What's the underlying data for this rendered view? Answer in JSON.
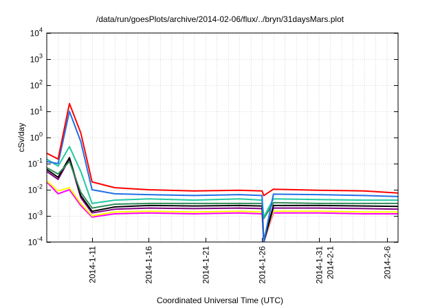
{
  "chart_data": {
    "type": "line",
    "title": "/data/run/goesPlots/archive/2014-02-06/flux/../bryn/31daysMars.plot",
    "xlabel": "Coordinated Universal Time (UTC)",
    "ylabel": "cSv/day",
    "yscale": "log",
    "ylim": [
      0.0001,
      10000
    ],
    "xlim": [
      "2014-01-07",
      "2014-02-07"
    ],
    "grid": true,
    "x_ticks": [
      "2014-1-11",
      "2014-1-16",
      "2014-1-21",
      "2014-1-26",
      "2014-1-31",
      "2014-2-1",
      "2014-2-6"
    ],
    "y_ticks": [
      {
        "value": 0.0001,
        "base": "10",
        "exp": "-4"
      },
      {
        "value": 0.001,
        "base": "10",
        "exp": "-3"
      },
      {
        "value": 0.01,
        "base": "10",
        "exp": "-2"
      },
      {
        "value": 0.1,
        "base": "10",
        "exp": "-1"
      },
      {
        "value": 1,
        "base": "10",
        "exp": "0"
      },
      {
        "value": 10,
        "base": "10",
        "exp": "1"
      },
      {
        "value": 100,
        "base": "10",
        "exp": "2"
      },
      {
        "value": 1000,
        "base": "10",
        "exp": "3"
      },
      {
        "value": 10000,
        "base": "10",
        "exp": "4"
      }
    ],
    "series": [
      {
        "color": "#ff00ff",
        "x": [
          "2014-01-07",
          "2014-01-08",
          "2014-01-09",
          "2014-01-10",
          "2014-01-11",
          "2014-01-13",
          "2014-01-16",
          "2014-01-20",
          "2014-01-24",
          "2014-01-26",
          "2014-01-26",
          "2014-01-27",
          "2014-01-31",
          "2014-02-04",
          "2014-02-07"
        ],
        "y": [
          0.02,
          0.007,
          0.01,
          0.0025,
          0.0009,
          0.0012,
          0.0013,
          0.0012,
          0.0013,
          0.0012,
          0.0001,
          0.0013,
          0.0013,
          0.0012,
          0.0012
        ]
      },
      {
        "color": "#ffff00",
        "x": [
          "2014-01-07",
          "2014-01-08",
          "2014-01-09",
          "2014-01-10",
          "2014-01-11",
          "2014-01-13",
          "2014-01-16",
          "2014-01-20",
          "2014-01-24",
          "2014-01-26",
          "2014-01-26",
          "2014-01-27",
          "2014-01-31",
          "2014-02-04",
          "2014-02-07"
        ],
        "y": [
          0.022,
          0.009,
          0.012,
          0.003,
          0.001,
          0.0014,
          0.0015,
          0.0014,
          0.0015,
          0.0014,
          0.0001,
          0.0015,
          0.0015,
          0.0014,
          0.0014
        ]
      },
      {
        "color": "#800080",
        "x": [
          "2014-01-07",
          "2014-01-08",
          "2014-01-09",
          "2014-01-10",
          "2014-01-11",
          "2014-01-13",
          "2014-01-16",
          "2014-01-20",
          "2014-01-24",
          "2014-01-26",
          "2014-01-26",
          "2014-01-27",
          "2014-01-31",
          "2014-02-04",
          "2014-02-07"
        ],
        "y": [
          0.05,
          0.025,
          0.15,
          0.005,
          0.0013,
          0.0018,
          0.002,
          0.0019,
          0.002,
          0.0019,
          0.0001,
          0.002,
          0.002,
          0.0019,
          0.0018
        ]
      },
      {
        "color": "#000000",
        "x": [
          "2014-01-07",
          "2014-01-08",
          "2014-01-09",
          "2014-01-10",
          "2014-01-11",
          "2014-01-13",
          "2014-01-16",
          "2014-01-20",
          "2014-01-24",
          "2014-01-26",
          "2014-01-26",
          "2014-01-27",
          "2014-01-31",
          "2014-02-04",
          "2014-02-07"
        ],
        "y": [
          0.06,
          0.03,
          0.17,
          0.006,
          0.0015,
          0.0022,
          0.0025,
          0.0024,
          0.0025,
          0.0024,
          0.0001,
          0.0025,
          0.0025,
          0.0024,
          0.0023
        ]
      },
      {
        "color": "#2e8b57",
        "x": [
          "2014-01-07",
          "2014-01-08",
          "2014-01-09",
          "2014-01-10",
          "2014-01-11",
          "2014-01-13",
          "2014-01-16",
          "2014-01-20",
          "2014-01-24",
          "2014-01-26",
          "2014-01-26",
          "2014-01-27",
          "2014-01-31",
          "2014-02-04",
          "2014-02-07"
        ],
        "y": [
          0.07,
          0.04,
          0.12,
          0.008,
          0.002,
          0.0028,
          0.003,
          0.003,
          0.003,
          0.003,
          0.0008,
          0.0032,
          0.003,
          0.003,
          0.003
        ]
      },
      {
        "color": "#20c8a0",
        "x": [
          "2014-01-07",
          "2014-01-08",
          "2014-01-09",
          "2014-01-10",
          "2014-01-11",
          "2014-01-13",
          "2014-01-16",
          "2014-01-20",
          "2014-01-24",
          "2014-01-26",
          "2014-01-26",
          "2014-01-27",
          "2014-01-31",
          "2014-02-04",
          "2014-02-07"
        ],
        "y": [
          0.15,
          0.08,
          0.45,
          0.05,
          0.003,
          0.004,
          0.0045,
          0.004,
          0.0045,
          0.004,
          0.0009,
          0.0045,
          0.0042,
          0.004,
          0.004
        ]
      },
      {
        "color": "#1e6fe6",
        "x": [
          "2014-01-07",
          "2014-01-08",
          "2014-01-09",
          "2014-01-10",
          "2014-01-11",
          "2014-01-13",
          "2014-01-16",
          "2014-01-20",
          "2014-01-24",
          "2014-01-26",
          "2014-01-26",
          "2014-01-27",
          "2014-01-31",
          "2014-02-04",
          "2014-02-07"
        ],
        "y": [
          0.12,
          0.1,
          10,
          0.7,
          0.01,
          0.007,
          0.0065,
          0.006,
          0.0065,
          0.006,
          0.0001,
          0.0068,
          0.0065,
          0.006,
          0.0055
        ]
      },
      {
        "color": "#ff0000",
        "x": [
          "2014-01-07",
          "2014-01-08",
          "2014-01-09",
          "2014-01-10",
          "2014-01-11",
          "2014-01-13",
          "2014-01-16",
          "2014-01-20",
          "2014-01-24",
          "2014-01-26",
          "2014-01-26",
          "2014-01-27",
          "2014-01-31",
          "2014-02-04",
          "2014-02-07"
        ],
        "y": [
          0.25,
          0.15,
          20,
          1.5,
          0.02,
          0.012,
          0.01,
          0.009,
          0.0095,
          0.009,
          0.006,
          0.0105,
          0.0095,
          0.009,
          0.0075
        ]
      }
    ]
  }
}
